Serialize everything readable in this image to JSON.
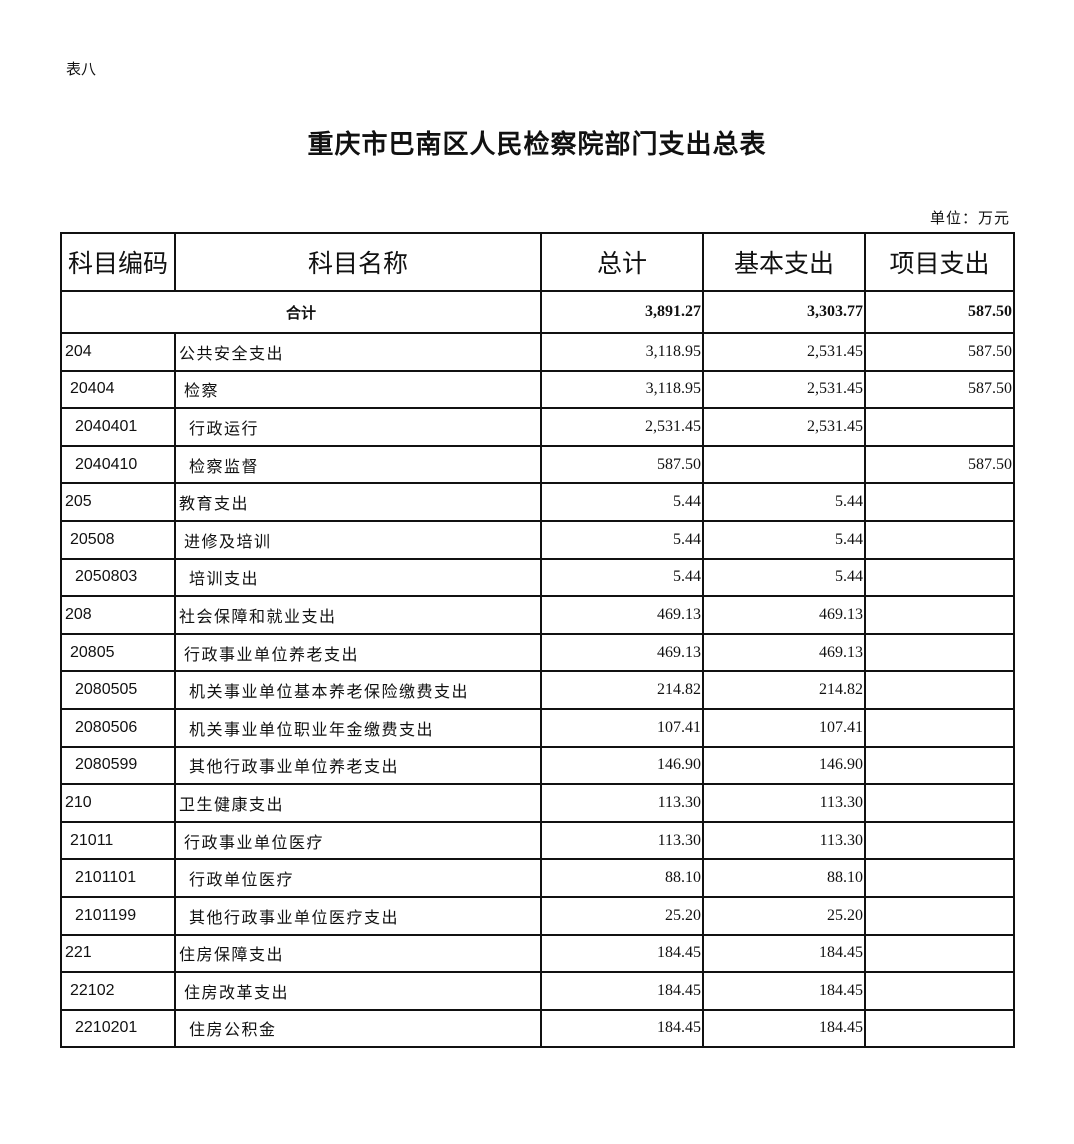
{
  "doc": {
    "tag": "表八",
    "title": "重庆市巴南区人民检察院部门支出总表",
    "unit": "单位：万元"
  },
  "table": {
    "headers": [
      "科目编码",
      "科目名称",
      "总计",
      "基本支出",
      "项目支出"
    ],
    "total": {
      "label": "合计",
      "total": "3,891.27",
      "basic": "3,303.77",
      "project": "587.50"
    },
    "rows": [
      {
        "level": 1,
        "code": "204",
        "name": "公共安全支出",
        "total": "3,118.95",
        "basic": "2,531.45",
        "project": "587.50"
      },
      {
        "level": 2,
        "code": "20404",
        "name": "检察",
        "total": "3,118.95",
        "basic": "2,531.45",
        "project": "587.50"
      },
      {
        "level": 3,
        "code": "2040401",
        "name": "行政运行",
        "total": "2,531.45",
        "basic": "2,531.45",
        "project": ""
      },
      {
        "level": 3,
        "code": "2040410",
        "name": "检察监督",
        "total": "587.50",
        "basic": "",
        "project": "587.50"
      },
      {
        "level": 1,
        "code": "205",
        "name": "教育支出",
        "total": "5.44",
        "basic": "5.44",
        "project": ""
      },
      {
        "level": 2,
        "code": "20508",
        "name": "进修及培训",
        "total": "5.44",
        "basic": "5.44",
        "project": ""
      },
      {
        "level": 3,
        "code": "2050803",
        "name": "培训支出",
        "total": "5.44",
        "basic": "5.44",
        "project": ""
      },
      {
        "level": 1,
        "code": "208",
        "name": "社会保障和就业支出",
        "total": "469.13",
        "basic": "469.13",
        "project": ""
      },
      {
        "level": 2,
        "code": "20805",
        "name": "行政事业单位养老支出",
        "total": "469.13",
        "basic": "469.13",
        "project": ""
      },
      {
        "level": 3,
        "code": "2080505",
        "name": "机关事业单位基本养老保险缴费支出",
        "total": "214.82",
        "basic": "214.82",
        "project": ""
      },
      {
        "level": 3,
        "code": "2080506",
        "name": "机关事业单位职业年金缴费支出",
        "total": "107.41",
        "basic": "107.41",
        "project": ""
      },
      {
        "level": 3,
        "code": "2080599",
        "name": "其他行政事业单位养老支出",
        "total": "146.90",
        "basic": "146.90",
        "project": ""
      },
      {
        "level": 1,
        "code": "210",
        "name": "卫生健康支出",
        "total": "113.30",
        "basic": "113.30",
        "project": ""
      },
      {
        "level": 2,
        "code": "21011",
        "name": "行政事业单位医疗",
        "total": "113.30",
        "basic": "113.30",
        "project": ""
      },
      {
        "level": 3,
        "code": "2101101",
        "name": "行政单位医疗",
        "total": "88.10",
        "basic": "88.10",
        "project": ""
      },
      {
        "level": 3,
        "code": "2101199",
        "name": "其他行政事业单位医疗支出",
        "total": "25.20",
        "basic": "25.20",
        "project": ""
      },
      {
        "level": 1,
        "code": "221",
        "name": "住房保障支出",
        "total": "184.45",
        "basic": "184.45",
        "project": ""
      },
      {
        "level": 2,
        "code": "22102",
        "name": "住房改革支出",
        "total": "184.45",
        "basic": "184.45",
        "project": ""
      },
      {
        "level": 3,
        "code": "2210201",
        "name": "住房公积金",
        "total": "184.45",
        "basic": "184.45",
        "project": ""
      }
    ]
  }
}
